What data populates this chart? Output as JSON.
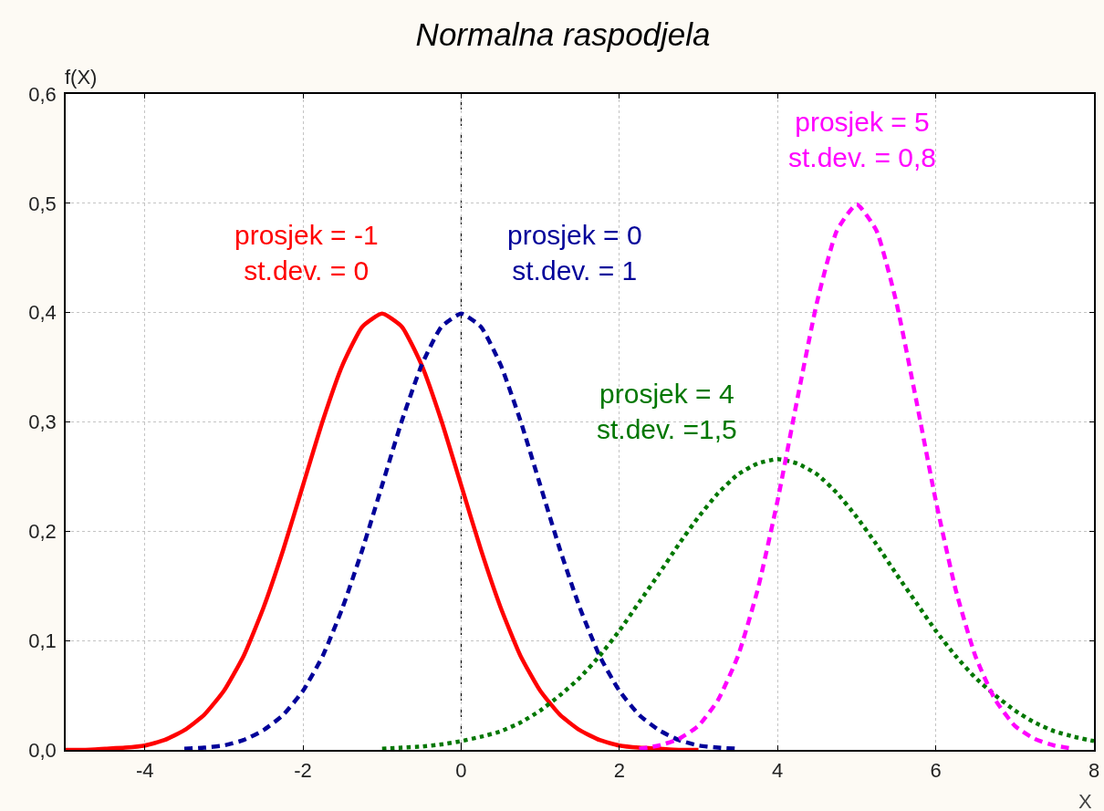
{
  "chart_data": {
    "type": "line",
    "title": "Normalna raspodjela",
    "xlabel": "X",
    "ylabel": "f(X)",
    "xlim": [
      -5,
      8
    ],
    "ylim": [
      0,
      0.6
    ],
    "xticks": [
      -4,
      -2,
      0,
      2,
      4,
      6,
      8
    ],
    "yticks": [
      {
        "value": 0,
        "label": "0,0"
      },
      {
        "value": 0.1,
        "label": "0,1"
      },
      {
        "value": 0.2,
        "label": "0,2"
      },
      {
        "value": 0.3,
        "label": "0,3"
      },
      {
        "value": 0.4,
        "label": "0,4"
      },
      {
        "value": 0.5,
        "label": "0,5"
      },
      {
        "value": 0.6,
        "label": "0,6"
      }
    ],
    "grid": true,
    "legend": false,
    "series": [
      {
        "name": "prosjek = -1\nst.dev. = 0",
        "color": "#ff0000",
        "line_style": "solid",
        "x": [
          -5,
          -4.75,
          -4.5,
          -4.25,
          -4,
          -3.75,
          -3.5,
          -3.25,
          -3,
          -2.75,
          -2.5,
          -2.25,
          -2,
          -1.75,
          -1.5,
          -1.25,
          -1,
          -0.75,
          -0.5,
          -0.25,
          0,
          0.25,
          0.5,
          0.75,
          1,
          1.25,
          1.5,
          1.75,
          2,
          2.25,
          2.5,
          2.75,
          3
        ],
        "values": [
          0,
          0,
          0.001,
          0.002,
          0.004,
          0.009,
          0.018,
          0.032,
          0.054,
          0.086,
          0.13,
          0.183,
          0.242,
          0.301,
          0.352,
          0.387,
          0.399,
          0.387,
          0.352,
          0.301,
          0.242,
          0.183,
          0.13,
          0.086,
          0.054,
          0.032,
          0.018,
          0.009,
          0.004,
          0.002,
          0.001,
          0,
          0
        ]
      },
      {
        "name": "prosjek = 0\nst.dev. = 1",
        "color": "#000099",
        "line_style": "dashed",
        "x": [
          -3.5,
          -3.25,
          -3,
          -2.75,
          -2.5,
          -2.25,
          -2,
          -1.75,
          -1.5,
          -1.25,
          -1,
          -0.75,
          -0.5,
          -0.25,
          0,
          0.25,
          0.5,
          0.75,
          1,
          1.25,
          1.5,
          1.75,
          2,
          2.25,
          2.5,
          2.75,
          3,
          3.25,
          3.5
        ],
        "values": [
          0.001,
          0.002,
          0.004,
          0.009,
          0.018,
          0.032,
          0.054,
          0.086,
          0.13,
          0.183,
          0.242,
          0.301,
          0.352,
          0.387,
          0.399,
          0.387,
          0.352,
          0.301,
          0.242,
          0.183,
          0.13,
          0.086,
          0.054,
          0.032,
          0.018,
          0.009,
          0.004,
          0.002,
          0.001
        ]
      },
      {
        "name": "prosjek = 4\nst.dev. =1,5",
        "color": "#007700",
        "line_style": "dotted",
        "x": [
          -1,
          -0.75,
          -0.5,
          -0.25,
          0,
          0.25,
          0.5,
          0.75,
          1,
          1.25,
          1.5,
          1.75,
          2,
          2.25,
          2.5,
          2.75,
          3,
          3.25,
          3.5,
          3.75,
          4,
          4.25,
          4.5,
          4.75,
          5,
          5.25,
          5.5,
          5.75,
          6,
          6.25,
          6.5,
          6.75,
          7,
          7.25,
          7.5,
          7.75,
          8
        ],
        "values": [
          0.001,
          0.002,
          0.003,
          0.005,
          0.008,
          0.012,
          0.017,
          0.025,
          0.036,
          0.05,
          0.066,
          0.086,
          0.109,
          0.135,
          0.161,
          0.188,
          0.213,
          0.235,
          0.252,
          0.262,
          0.266,
          0.262,
          0.252,
          0.235,
          0.213,
          0.188,
          0.161,
          0.135,
          0.109,
          0.086,
          0.066,
          0.05,
          0.036,
          0.025,
          0.017,
          0.012,
          0.008
        ]
      },
      {
        "name": "prosjek = 5\nst.dev. = 0,8",
        "color": "#ff00ff",
        "line_style": "dashed",
        "x": [
          2.25,
          2.5,
          2.75,
          3,
          3.25,
          3.5,
          3.75,
          4,
          4.25,
          4.5,
          4.75,
          5,
          5.25,
          5.5,
          5.75,
          6,
          6.25,
          6.5,
          6.75,
          7,
          7.25,
          7.5,
          7.75
        ],
        "values": [
          0.001,
          0.004,
          0.01,
          0.022,
          0.046,
          0.086,
          0.147,
          0.228,
          0.321,
          0.41,
          0.475,
          0.499,
          0.475,
          0.41,
          0.321,
          0.228,
          0.147,
          0.086,
          0.046,
          0.022,
          0.01,
          0.004,
          0.001
        ]
      }
    ],
    "ref_lines": [
      {
        "axis": "x",
        "value": 0,
        "color": "#000000",
        "line_style": "dashed"
      }
    ]
  }
}
